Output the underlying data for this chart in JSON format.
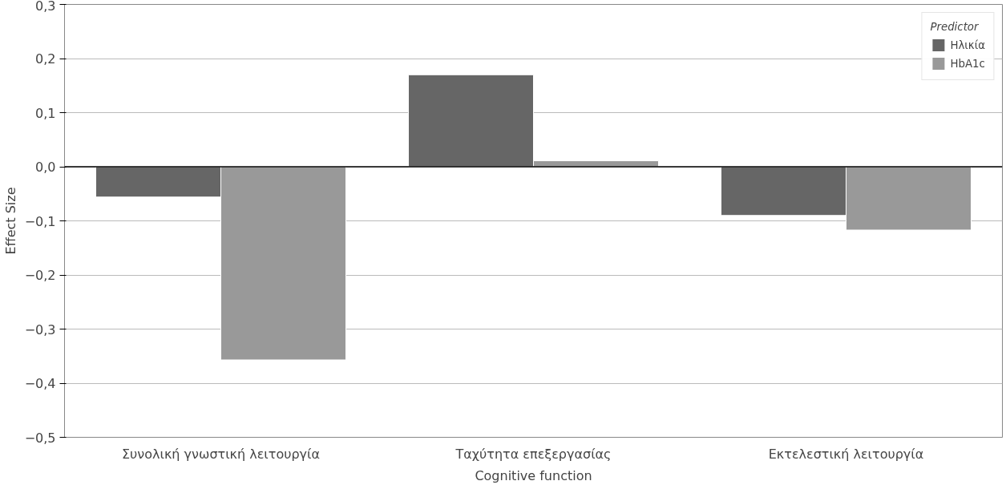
{
  "chart_data": {
    "type": "bar",
    "xlabel": "Cognitive function",
    "ylabel": "Effect Size",
    "legend_title": "Predictor",
    "categories": [
      "Συνολική γνωστική λειτουργία",
      "Ταχύτητα επεξεργασίας",
      "Εκτελεστική λειτουργία"
    ],
    "series": [
      {
        "name": "Ηλικία",
        "color": "#666666",
        "values": [
          -0.056,
          0.17,
          -0.09
        ]
      },
      {
        "name": "HbA1c",
        "color": "#999999",
        "values": [
          -0.357,
          0.011,
          -0.117
        ]
      }
    ],
    "ylim": [
      -0.5,
      0.3
    ],
    "yticks": [
      {
        "value": -0.5,
        "label": "−0,5"
      },
      {
        "value": -0.4,
        "label": "−0,4"
      },
      {
        "value": -0.3,
        "label": "−0,3"
      },
      {
        "value": -0.2,
        "label": "−0,2"
      },
      {
        "value": -0.1,
        "label": "−0,1"
      },
      {
        "value": 0,
        "label": "0,0"
      },
      {
        "value": 0.1,
        "label": "0,1"
      },
      {
        "value": 0.2,
        "label": "0,2"
      },
      {
        "value": 0.3,
        "label": "0,3"
      }
    ],
    "ref_lines": [
      {
        "axis": "y",
        "value": 0,
        "color": "#000000"
      }
    ],
    "grid": "y",
    "legend": "top right"
  }
}
